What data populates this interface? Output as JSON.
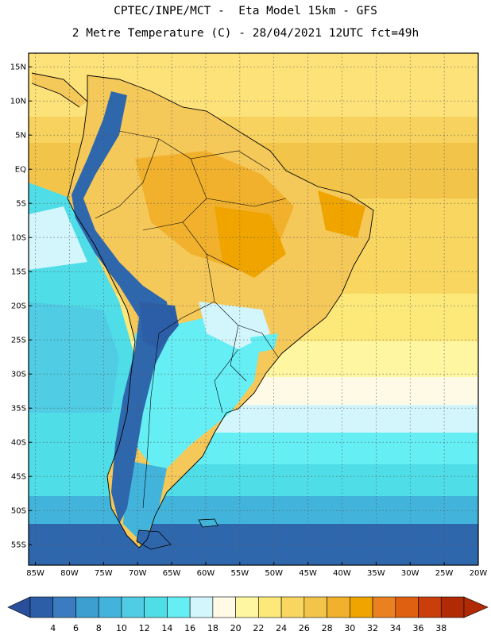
{
  "header": {
    "line1": "CPTEC/INPE/MCT -  Eta Model 15km - GFS",
    "line2": "2 Metre Temperature (C) - 28/04/2021 12UTC fct=49h"
  },
  "map": {
    "lat_labels": [
      "15N",
      "10N",
      "5N",
      "EQ",
      "5S",
      "10S",
      "15S",
      "20S",
      "25S",
      "30S",
      "35S",
      "40S",
      "45S",
      "50S",
      "55S"
    ],
    "lon_labels": [
      "85W",
      "80W",
      "75W",
      "70W",
      "65W",
      "60W",
      "55W",
      "50W",
      "45W",
      "40W",
      "35W",
      "30W",
      "25W",
      "20W"
    ],
    "lat_range": [
      17,
      -58
    ],
    "lon_range": [
      -86,
      -20
    ]
  },
  "colorbar": {
    "levels": [
      "4",
      "6",
      "8",
      "10",
      "12",
      "14",
      "16",
      "18",
      "20",
      "22",
      "24",
      "26",
      "28",
      "30",
      "32",
      "34",
      "36",
      "38"
    ],
    "colors": [
      "#2b5ea7",
      "#3a7cbf",
      "#3d9ed0",
      "#42b4dc",
      "#50cce4",
      "#4fdde8",
      "#66eef5",
      "#d2f6fc",
      "#fffae6",
      "#fef6a0",
      "#fde97a",
      "#f8d660",
      "#f2c54a",
      "#f1b12d",
      "#f0a400",
      "#ea8020",
      "#de6010",
      "#c93e0a",
      "#b02a05"
    ],
    "left_color": "#2a4f9a",
    "right_color": "#b02a05"
  }
}
